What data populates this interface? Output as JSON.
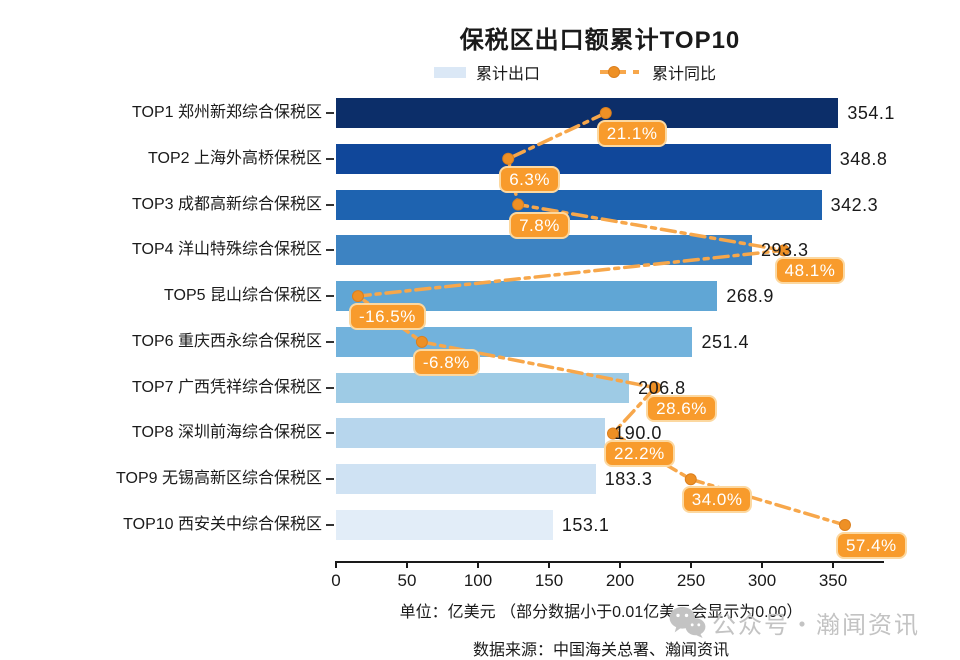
{
  "title": "保税区出口额累计TOP10",
  "legend": {
    "bar_label": "累计出口",
    "line_label": "累计同比"
  },
  "chart_data": {
    "type": "bar",
    "orientation": "horizontal-bars-with-line-overlay",
    "title": "保税区出口额累计TOP10",
    "categories": [
      "TOP1 郑州新郑综合保税区",
      "TOP2 上海外高桥保税区",
      "TOP3 成都高新综合保税区",
      "TOP4 洋山特殊综合保税区",
      "TOP5 昆山综合保税区",
      "TOP6 重庆西永综合保税区",
      "TOP7 广西凭祥综合保税区",
      "TOP8 深圳前海综合保税区",
      "TOP9 无锡高新区综合保税区",
      "TOP10 西安关中综合保税区"
    ],
    "series": [
      {
        "name": "累计出口",
        "type": "bar",
        "unit": "亿美元",
        "values": [
          354.1,
          348.8,
          342.3,
          293.3,
          268.9,
          251.4,
          206.8,
          190.0,
          183.3,
          153.1
        ],
        "labels": [
          "354.1",
          "348.8",
          "342.3",
          "293.3",
          "268.9",
          "251.4",
          "206.8",
          "190.0",
          "183.3",
          "153.1"
        ]
      },
      {
        "name": "累计同比",
        "type": "line",
        "unit": "%",
        "values": [
          21.1,
          6.3,
          7.8,
          48.1,
          -16.5,
          -6.8,
          28.6,
          22.2,
          34.0,
          57.4
        ],
        "labels": [
          "21.1%",
          "6.3%",
          "7.8%",
          "48.1%",
          "-16.5%",
          "-6.8%",
          "28.6%",
          "22.2%",
          "34.0%",
          "57.4%"
        ]
      }
    ],
    "x_axis": {
      "ticks": [
        0,
        50,
        100,
        150,
        200,
        250,
        300,
        350
      ],
      "grid": false
    },
    "legend_position": "top",
    "colors": {
      "bars": [
        "#0c2e69",
        "#10479a",
        "#1e63b0",
        "#3d83c2",
        "#60a6d5",
        "#72b2dc",
        "#9ecbe5",
        "#b7d6ed",
        "#cfe2f3",
        "#e2edf8"
      ],
      "line": "#f7a74b",
      "marker_fill": "#ee9025",
      "marker_stroke": "#db7f1e",
      "badge_bg": "#f89b2c",
      "badge_border": "#fcd8a0",
      "badge_text": "#ffffff",
      "legend_swatch": "#dbe8f6",
      "axis": "#1a1a1a"
    }
  },
  "footer": {
    "unit_note": "单位：亿美元 （部分数据小于0.01亿美元会显示为0.00）",
    "source": "数据来源：中国海关总署、瀚闻资讯"
  },
  "watermark": {
    "icon": "wechat-icon",
    "text": "公众号・瀚闻资讯"
  }
}
